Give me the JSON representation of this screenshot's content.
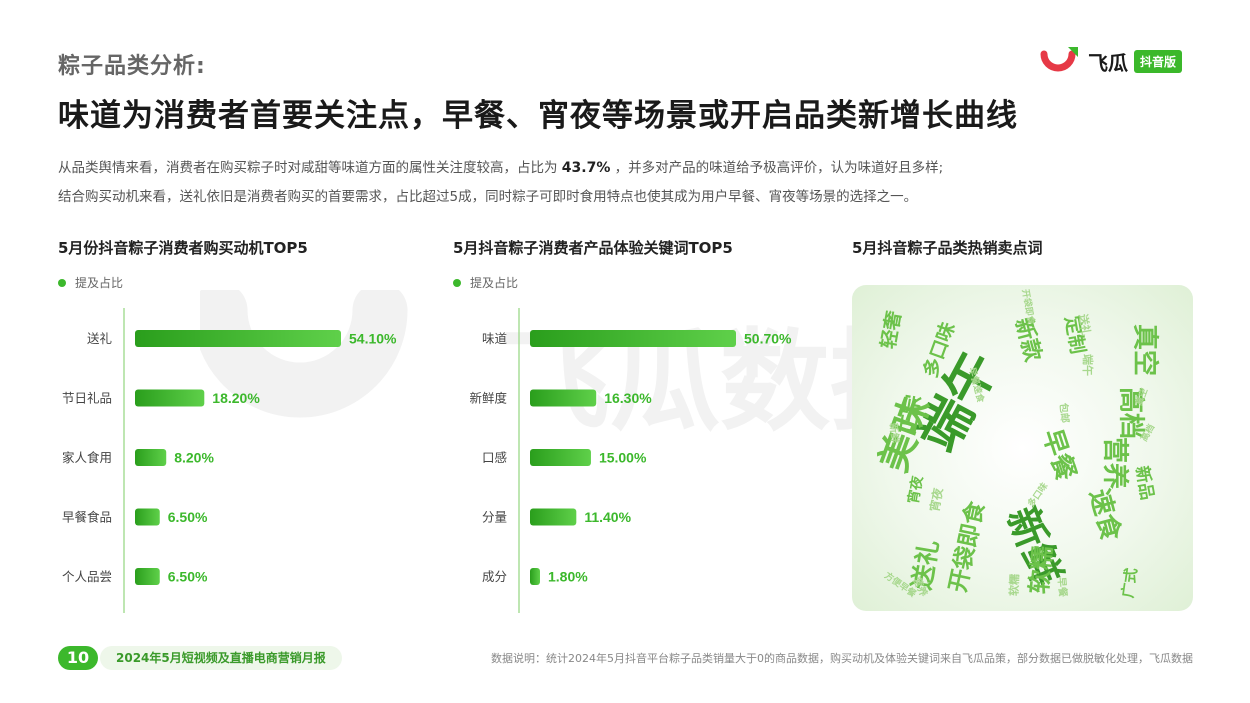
{
  "header": {
    "section_label": "粽子品类分析:",
    "headline": "味道为消费者首要关注点，早餐、宵夜等场景或开启品类新增长曲线",
    "logo_brand": "飞瓜",
    "logo_badge": "抖音版"
  },
  "intro": {
    "line1_a": "从品类舆情来看，消费者在购买粽子时对咸甜等味道方面的属性关注度较高，占比为",
    "line1_highlight": "43.7%",
    "line1_b": "，并多对产品的味道给予极高评价，认为味道好且多样;",
    "line2": "结合购买动机来看，送礼依旧是消费者购买的首要需求，占比超过5成，同时粽子可即时食用特点也使其成为用户早餐、宵夜等场景的选择之一。"
  },
  "colors": {
    "accent": "#3cb82c",
    "bar_dark": "#2a9e1c",
    "bar_light": "#5fd04a",
    "value_text": "#3cb82c",
    "cloud_dark": "#3a9a2a",
    "cloud_mid": "#6cc24a",
    "cloud_light": "#a8d88e"
  },
  "chart_data": [
    {
      "type": "bar",
      "orientation": "horizontal",
      "title": "5月份抖音粽子消费者购买动机TOP5",
      "legend": "提及占比",
      "categories": [
        "送礼",
        "节日礼品",
        "家人食用",
        "早餐食品",
        "个人品尝"
      ],
      "values": [
        54.1,
        18.2,
        8.2,
        6.5,
        6.5
      ],
      "value_labels": [
        "54.10%",
        "18.20%",
        "8.20%",
        "6.50%",
        "6.50%"
      ],
      "xlim": [
        0,
        54.1
      ]
    },
    {
      "type": "bar",
      "orientation": "horizontal",
      "title": "5月抖音粽子消费者产品体验关键词TOP5",
      "legend": "提及占比",
      "categories": [
        "味道",
        "新鲜度",
        "口感",
        "分量",
        "成分"
      ],
      "values": [
        50.7,
        16.3,
        15.0,
        11.4,
        1.8
      ],
      "value_labels": [
        "50.70%",
        "16.30%",
        "15.00%",
        "11.40%",
        "1.80%"
      ],
      "xlim": [
        0,
        50.7
      ]
    }
  ],
  "wordcloud": {
    "title": "5月抖音粽子品类热销卖点词",
    "words": [
      {
        "text": "端午",
        "tone": "dark"
      },
      {
        "text": "美味",
        "tone": "mid"
      },
      {
        "text": "新鲜",
        "tone": "dark"
      },
      {
        "text": "真空",
        "tone": "mid"
      },
      {
        "text": "高档",
        "tone": "mid"
      },
      {
        "text": "营养",
        "tone": "mid"
      },
      {
        "text": "早餐",
        "tone": "mid"
      },
      {
        "text": "速食",
        "tone": "mid"
      },
      {
        "text": "软糯",
        "tone": "mid"
      },
      {
        "text": "送礼",
        "tone": "mid"
      },
      {
        "text": "开袋即食",
        "tone": "mid"
      },
      {
        "text": "新款",
        "tone": "mid"
      },
      {
        "text": "正宗",
        "tone": "mid"
      },
      {
        "text": "多口味",
        "tone": "mid"
      },
      {
        "text": "轻奢",
        "tone": "mid"
      },
      {
        "text": "定制",
        "tone": "mid"
      },
      {
        "text": "新品",
        "tone": "mid"
      },
      {
        "text": "宵夜",
        "tone": "mid"
      },
      {
        "text": "广式",
        "tone": "mid"
      },
      {
        "text": "送礼",
        "tone": "light"
      },
      {
        "text": "端午",
        "tone": "light"
      },
      {
        "text": "包邮",
        "tone": "light"
      },
      {
        "text": "新鲜",
        "tone": "light"
      },
      {
        "text": "早餐速食",
        "tone": "light"
      },
      {
        "text": "开袋即食",
        "tone": "light"
      },
      {
        "text": "多口味",
        "tone": "light"
      },
      {
        "text": "方便早餐",
        "tone": "light"
      },
      {
        "text": "营养",
        "tone": "light"
      },
      {
        "text": "软糯",
        "tone": "light"
      },
      {
        "text": "高档",
        "tone": "light"
      },
      {
        "text": "真空",
        "tone": "light"
      },
      {
        "text": "早餐",
        "tone": "light"
      },
      {
        "text": "宵夜",
        "tone": "light"
      }
    ]
  },
  "footer": {
    "page_number": "10",
    "report_title": "2024年5月短视频及直播电商营销月报",
    "note": "数据说明：统计2024年5月抖音平台粽子品类销量大于0的商品数据，购买动机及体验关键词来自飞瓜品策，部分数据已做脱敏化处理，飞瓜数据"
  }
}
